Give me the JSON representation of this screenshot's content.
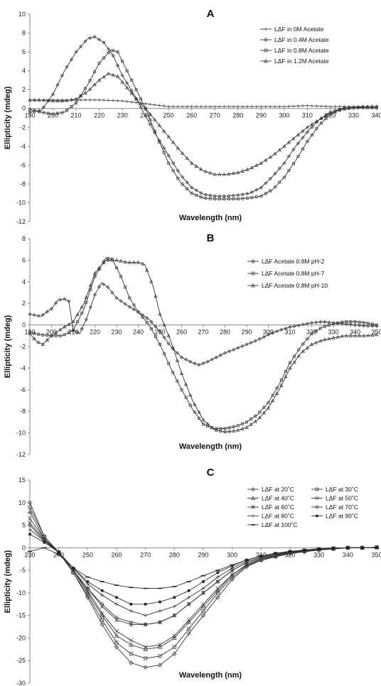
{
  "chart_data": [
    {
      "type": "line",
      "title": "A",
      "xlabel": "Wavelength (nm)",
      "ylabel": "Ellipticity (mdeg)",
      "xlim": [
        190,
        340
      ],
      "ylim": [
        -12,
        10
      ],
      "xticks": [
        190,
        200,
        210,
        220,
        230,
        240,
        250,
        260,
        270,
        280,
        290,
        300,
        310,
        320,
        330,
        340
      ],
      "yticks": [
        10,
        8,
        6,
        4,
        2,
        0,
        -2,
        -4,
        -6,
        -8,
        -10,
        -12
      ],
      "legend_position": "top-right",
      "series": [
        {
          "name": "LΔF in 0M Acetate",
          "marker": "plus",
          "x": [
            190,
            200,
            210,
            220,
            230,
            240,
            250,
            260,
            270,
            280,
            290,
            300,
            310,
            320,
            330,
            340
          ],
          "y": [
            0.9,
            0.9,
            0.9,
            0.9,
            0.8,
            0.5,
            0.2,
            0.2,
            0.2,
            0.2,
            0.2,
            0.2,
            0.3,
            0.2,
            0.2,
            0.2
          ]
        },
        {
          "name": "LΔF in 0.4M Acetate",
          "marker": "diamond",
          "x": [
            190,
            195,
            200,
            205,
            210,
            215,
            218,
            222,
            226,
            230,
            235,
            240,
            245,
            250,
            255,
            260,
            265,
            270,
            275,
            280,
            285,
            290,
            295,
            300,
            305,
            310,
            315,
            320,
            325,
            330,
            335,
            340
          ],
          "y": [
            -0.4,
            -0.2,
            1.5,
            4.0,
            6.0,
            7.4,
            7.6,
            7.0,
            5.6,
            3.5,
            1.5,
            -0.8,
            -3.0,
            -5.0,
            -7.0,
            -8.4,
            -9.1,
            -9.3,
            -9.3,
            -9.2,
            -9.0,
            -8.4,
            -7.2,
            -5.8,
            -4.0,
            -2.5,
            -1.2,
            -0.4,
            0.0,
            0.1,
            0.2,
            0.2
          ]
        },
        {
          "name": "LΔF in 0.8M Acetate",
          "marker": "square",
          "x": [
            190,
            195,
            200,
            205,
            210,
            215,
            220,
            225,
            228,
            232,
            236,
            240,
            245,
            250,
            255,
            260,
            265,
            270,
            275,
            280,
            285,
            290,
            295,
            300,
            305,
            310,
            315,
            320,
            325,
            330,
            335,
            340
          ],
          "y": [
            -0.1,
            -0.4,
            -0.6,
            -0.4,
            0.6,
            2.5,
            4.8,
            6.2,
            6.0,
            4.0,
            2.0,
            0.0,
            -3.0,
            -5.8,
            -7.8,
            -9.0,
            -9.5,
            -9.6,
            -9.6,
            -9.6,
            -9.5,
            -9.3,
            -8.6,
            -7.3,
            -5.5,
            -3.5,
            -1.8,
            -0.6,
            0.0,
            0.1,
            0.1,
            0.1
          ]
        },
        {
          "name": "LΔF in 1.2M Acetate",
          "marker": "triangle",
          "x": [
            190,
            195,
            200,
            205,
            210,
            215,
            220,
            224,
            228,
            232,
            236,
            240,
            245,
            250,
            255,
            260,
            265,
            270,
            275,
            280,
            285,
            290,
            295,
            300,
            305,
            310,
            315,
            320,
            325,
            330,
            335,
            340
          ],
          "y": [
            0.9,
            0.9,
            0.8,
            0.8,
            1.0,
            1.8,
            3.0,
            3.7,
            3.4,
            2.2,
            1.0,
            0.0,
            -1.5,
            -3.0,
            -4.5,
            -5.8,
            -6.6,
            -7.0,
            -7.0,
            -6.8,
            -6.4,
            -5.8,
            -5.0,
            -4.0,
            -3.0,
            -2.0,
            -1.2,
            -0.5,
            -0.1,
            0.1,
            0.1,
            0.1
          ]
        }
      ]
    },
    {
      "type": "line",
      "title": "B",
      "xlabel": "Wavelength (nm)",
      "ylabel": "Ellipticity (mdeg)",
      "xlim": [
        190,
        350
      ],
      "ylim": [
        -12,
        8
      ],
      "xticks": [
        190,
        200,
        210,
        220,
        230,
        240,
        250,
        260,
        270,
        280,
        290,
        300,
        310,
        320,
        330,
        340,
        350
      ],
      "yticks": [
        8,
        6,
        4,
        2,
        0,
        -2,
        -4,
        -6,
        -8,
        -10,
        -12
      ],
      "legend_position": "top-right",
      "series": [
        {
          "name": "LΔF Acetate 0.8M pH-2",
          "marker": "diamond",
          "x": [
            190,
            195,
            200,
            203,
            206,
            208,
            210,
            213,
            216,
            220,
            223,
            226,
            230,
            235,
            240,
            245,
            250,
            255,
            260,
            265,
            268,
            272,
            276,
            280,
            285,
            290,
            295,
            300,
            305,
            310,
            315,
            320,
            325,
            330,
            335,
            340,
            345,
            350
          ],
          "y": [
            1.0,
            0.8,
            1.5,
            2.3,
            2.4,
            2.2,
            -0.5,
            -0.8,
            0.5,
            2.8,
            3.9,
            3.5,
            2.5,
            1.8,
            1.2,
            0.5,
            -0.6,
            -2.0,
            -3.0,
            -3.5,
            -3.7,
            -3.4,
            -3.0,
            -2.6,
            -2.2,
            -1.8,
            -1.4,
            -0.9,
            -0.5,
            -0.2,
            0.0,
            0.2,
            0.3,
            0.2,
            0.1,
            0.0,
            -0.1,
            -0.1
          ]
        },
        {
          "name": "LΔF Acetate 0.8M pH-7",
          "marker": "square",
          "x": [
            190,
            195,
            200,
            205,
            210,
            215,
            220,
            225,
            228,
            232,
            236,
            240,
            245,
            250,
            255,
            260,
            265,
            270,
            275,
            280,
            285,
            290,
            295,
            300,
            305,
            310,
            315,
            320,
            325,
            330,
            335,
            340,
            345,
            350
          ],
          "y": [
            -0.7,
            -0.9,
            -1.0,
            -1.0,
            -0.5,
            1.5,
            4.5,
            6.2,
            6.1,
            4.5,
            2.5,
            1.2,
            0.0,
            -1.8,
            -4.0,
            -6.0,
            -7.8,
            -9.2,
            -9.6,
            -9.6,
            -9.4,
            -9.0,
            -8.3,
            -7.2,
            -5.5,
            -3.5,
            -2.0,
            -0.8,
            -0.2,
            0.1,
            0.3,
            0.3,
            0.2,
            0.0
          ]
        },
        {
          "name": "LΔF Acetate 0.8M pH-10",
          "marker": "triangle",
          "x": [
            190,
            193,
            196,
            200,
            205,
            210,
            215,
            220,
            225,
            230,
            235,
            240,
            243,
            247,
            250,
            255,
            260,
            265,
            270,
            275,
            280,
            285,
            290,
            295,
            300,
            305,
            310,
            315,
            320,
            325,
            330,
            335,
            340,
            345,
            350
          ],
          "y": [
            -0.8,
            -1.5,
            -1.8,
            -1.0,
            -0.3,
            0.3,
            2.0,
            4.8,
            6.0,
            6.0,
            5.8,
            5.8,
            5.6,
            3.5,
            1.0,
            -1.5,
            -4.5,
            -7.0,
            -8.8,
            -9.7,
            -9.9,
            -9.8,
            -9.5,
            -8.8,
            -7.7,
            -6.0,
            -4.0,
            -2.6,
            -1.8,
            -1.4,
            -1.2,
            -1.0,
            -1.0,
            -1.0,
            -0.9
          ]
        }
      ]
    },
    {
      "type": "line",
      "title": "C",
      "xlabel": "Wavelength (nm)",
      "ylabel": "Ellipticity (mdeg)",
      "xlim": [
        230,
        350
      ],
      "ylim": [
        -30,
        15
      ],
      "xticks": [
        230,
        240,
        250,
        260,
        270,
        280,
        290,
        300,
        310,
        320,
        330,
        340,
        350
      ],
      "yticks": [
        15,
        10,
        5,
        0,
        -5,
        -10,
        -15,
        -20,
        -25,
        -30
      ],
      "legend_position": "top-right",
      "series": [
        {
          "name": "LΔF at 20˚C",
          "marker": "diamond",
          "x": [
            230,
            235,
            240,
            245,
            250,
            255,
            260,
            265,
            270,
            275,
            280,
            285,
            290,
            295,
            300,
            305,
            310,
            315,
            320,
            325,
            330,
            335,
            340,
            345,
            350
          ],
          "y": [
            10,
            2.5,
            -1,
            -5.5,
            -11,
            -17,
            -22,
            -25.5,
            -26.5,
            -26,
            -23.5,
            -19,
            -15,
            -11,
            -7,
            -4.2,
            -2.8,
            -2,
            -1.3,
            -0.9,
            -0.5,
            -0.3,
            0,
            0,
            0.1
          ]
        },
        {
          "name": "LΔF at 30˚C",
          "marker": "square",
          "x": [
            230,
            235,
            240,
            245,
            250,
            255,
            260,
            265,
            270,
            275,
            280,
            285,
            290,
            295,
            300,
            305,
            310,
            315,
            320,
            325,
            330,
            335,
            340,
            345,
            350
          ],
          "y": [
            9,
            2.5,
            -1,
            -5.5,
            -10.5,
            -16,
            -21,
            -23.5,
            -24.5,
            -24,
            -22,
            -18,
            -14,
            -10,
            -6.5,
            -4,
            -2.7,
            -1.9,
            -1.2,
            -0.8,
            -0.4,
            -0.2,
            0,
            0,
            0.1
          ]
        },
        {
          "name": "LΔF at 40˚C",
          "marker": "triangle",
          "x": [
            230,
            235,
            240,
            245,
            250,
            255,
            260,
            265,
            270,
            275,
            280,
            285,
            290,
            295,
            300,
            305,
            310,
            315,
            320,
            325,
            330,
            335,
            340,
            345,
            350
          ],
          "y": [
            8,
            2,
            -1,
            -5,
            -10,
            -15,
            -19.5,
            -21.5,
            -22.5,
            -22,
            -20,
            -16.5,
            -13,
            -9.5,
            -6,
            -3.8,
            -2.5,
            -1.8,
            -1.1,
            -0.7,
            -0.4,
            -0.2,
            0,
            0,
            0.1
          ]
        },
        {
          "name": "LΔF at 50˚C",
          "marker": "x",
          "x": [
            230,
            235,
            240,
            245,
            250,
            255,
            260,
            265,
            270,
            275,
            280,
            285,
            290,
            295,
            300,
            305,
            310,
            315,
            320,
            325,
            330,
            335,
            340,
            345,
            350
          ],
          "y": [
            6.5,
            2,
            -1,
            -5,
            -9.5,
            -14.5,
            -18.5,
            -20.5,
            -22,
            -21.5,
            -19.5,
            -16,
            -12.5,
            -9,
            -6,
            -3.7,
            -2.4,
            -1.7,
            -1.1,
            -0.7,
            -0.4,
            -0.2,
            0,
            0,
            0.1
          ]
        },
        {
          "name": "LΔF at 60˚C",
          "marker": "star",
          "x": [
            230,
            235,
            240,
            245,
            250,
            255,
            260,
            265,
            270,
            275,
            280,
            285,
            290,
            295,
            300,
            305,
            310,
            315,
            320,
            325,
            330,
            335,
            340,
            345,
            350
          ],
          "y": [
            5.5,
            1.8,
            -1,
            -5,
            -9,
            -13,
            -16,
            -17,
            -17,
            -16.5,
            -15,
            -12.5,
            -10,
            -7.5,
            -5,
            -3.3,
            -2.2,
            -1.5,
            -1,
            -0.6,
            -0.3,
            -0.1,
            0,
            0,
            0.1
          ]
        },
        {
          "name": "LΔF at 70˚C",
          "marker": "circle",
          "x": [
            230,
            235,
            240,
            245,
            250,
            255,
            260,
            265,
            270,
            275,
            280,
            285,
            290,
            295,
            300,
            305,
            310,
            315,
            320,
            325,
            330,
            335,
            340,
            345,
            350
          ],
          "y": [
            5,
            1.5,
            -1,
            -5,
            -9,
            -12.5,
            -15.5,
            -16.5,
            -17,
            -16.5,
            -15,
            -12.5,
            -10,
            -7.5,
            -5,
            -3.3,
            -2.2,
            -1.5,
            -1,
            -0.6,
            -0.3,
            -0.1,
            0,
            0,
            0.1
          ]
        },
        {
          "name": "LΔF at 80˚C",
          "marker": "plus",
          "x": [
            230,
            235,
            240,
            245,
            250,
            255,
            260,
            265,
            270,
            275,
            280,
            285,
            290,
            295,
            300,
            305,
            310,
            315,
            320,
            325,
            330,
            335,
            340,
            345,
            350
          ],
          "y": [
            4,
            1.5,
            -1,
            -4.5,
            -8,
            -10.5,
            -12.5,
            -14,
            -15,
            -14,
            -13,
            -11,
            -9,
            -6.5,
            -4.5,
            -3,
            -2,
            -1.4,
            -0.9,
            -0.6,
            -0.3,
            -0.1,
            0,
            0,
            0.1
          ]
        },
        {
          "name": "LΔF at 90˚C",
          "marker": "dot",
          "x": [
            230,
            235,
            240,
            245,
            250,
            255,
            260,
            265,
            270,
            275,
            280,
            285,
            290,
            295,
            300,
            305,
            310,
            315,
            320,
            325,
            330,
            335,
            340,
            345,
            350
          ],
          "y": [
            3,
            1.2,
            -1,
            -4.5,
            -7.5,
            -9.5,
            -11,
            -12.5,
            -12.5,
            -12,
            -11,
            -9.5,
            -7.5,
            -5.5,
            -4,
            -2.7,
            -1.8,
            -1.2,
            -0.8,
            -0.5,
            -0.2,
            -0.1,
            0,
            0,
            0.1
          ]
        },
        {
          "name": "LΔF at 100˚C",
          "marker": "dash",
          "x": [
            230,
            235,
            240,
            245,
            250,
            255,
            260,
            265,
            270,
            275,
            280,
            285,
            290,
            295,
            300,
            305,
            310,
            315,
            320,
            325,
            330,
            335,
            340,
            345,
            350
          ],
          "y": [
            -0.8,
            0,
            -1.5,
            -4.5,
            -6.5,
            -7.5,
            -8.3,
            -8.8,
            -9,
            -9,
            -8.6,
            -7.5,
            -6.2,
            -5,
            -3.8,
            -2.7,
            -1.8,
            -1.2,
            -0.8,
            -0.5,
            -0.3,
            -0.1,
            0,
            0,
            0
          ]
        }
      ]
    }
  ]
}
